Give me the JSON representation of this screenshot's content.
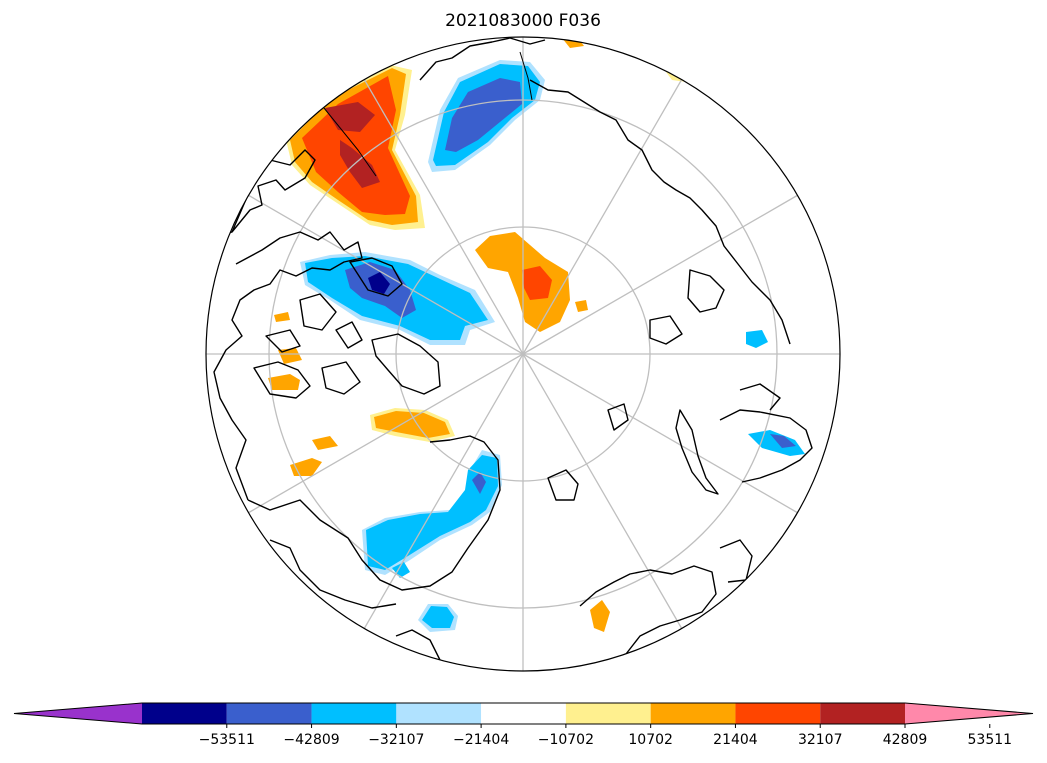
{
  "title": "2021083000 F036",
  "colorbar": {
    "colors": [
      "#9932cc",
      "#00008b",
      "#3a5fcd",
      "#00bfff",
      "#b0e2ff",
      "#ffffff",
      "#fff08f",
      "#ffa500",
      "#ff4500",
      "#b22222",
      "#ff88aa"
    ],
    "tick_labels": [
      "−53511",
      "−42809",
      "−32107",
      "−21404",
      "−10702",
      "10702",
      "21404",
      "32107",
      "42809",
      "53511"
    ],
    "extend": "both"
  },
  "map": {
    "projection": "north-polar-stereographic",
    "graticule": true,
    "coastlines": true
  }
}
